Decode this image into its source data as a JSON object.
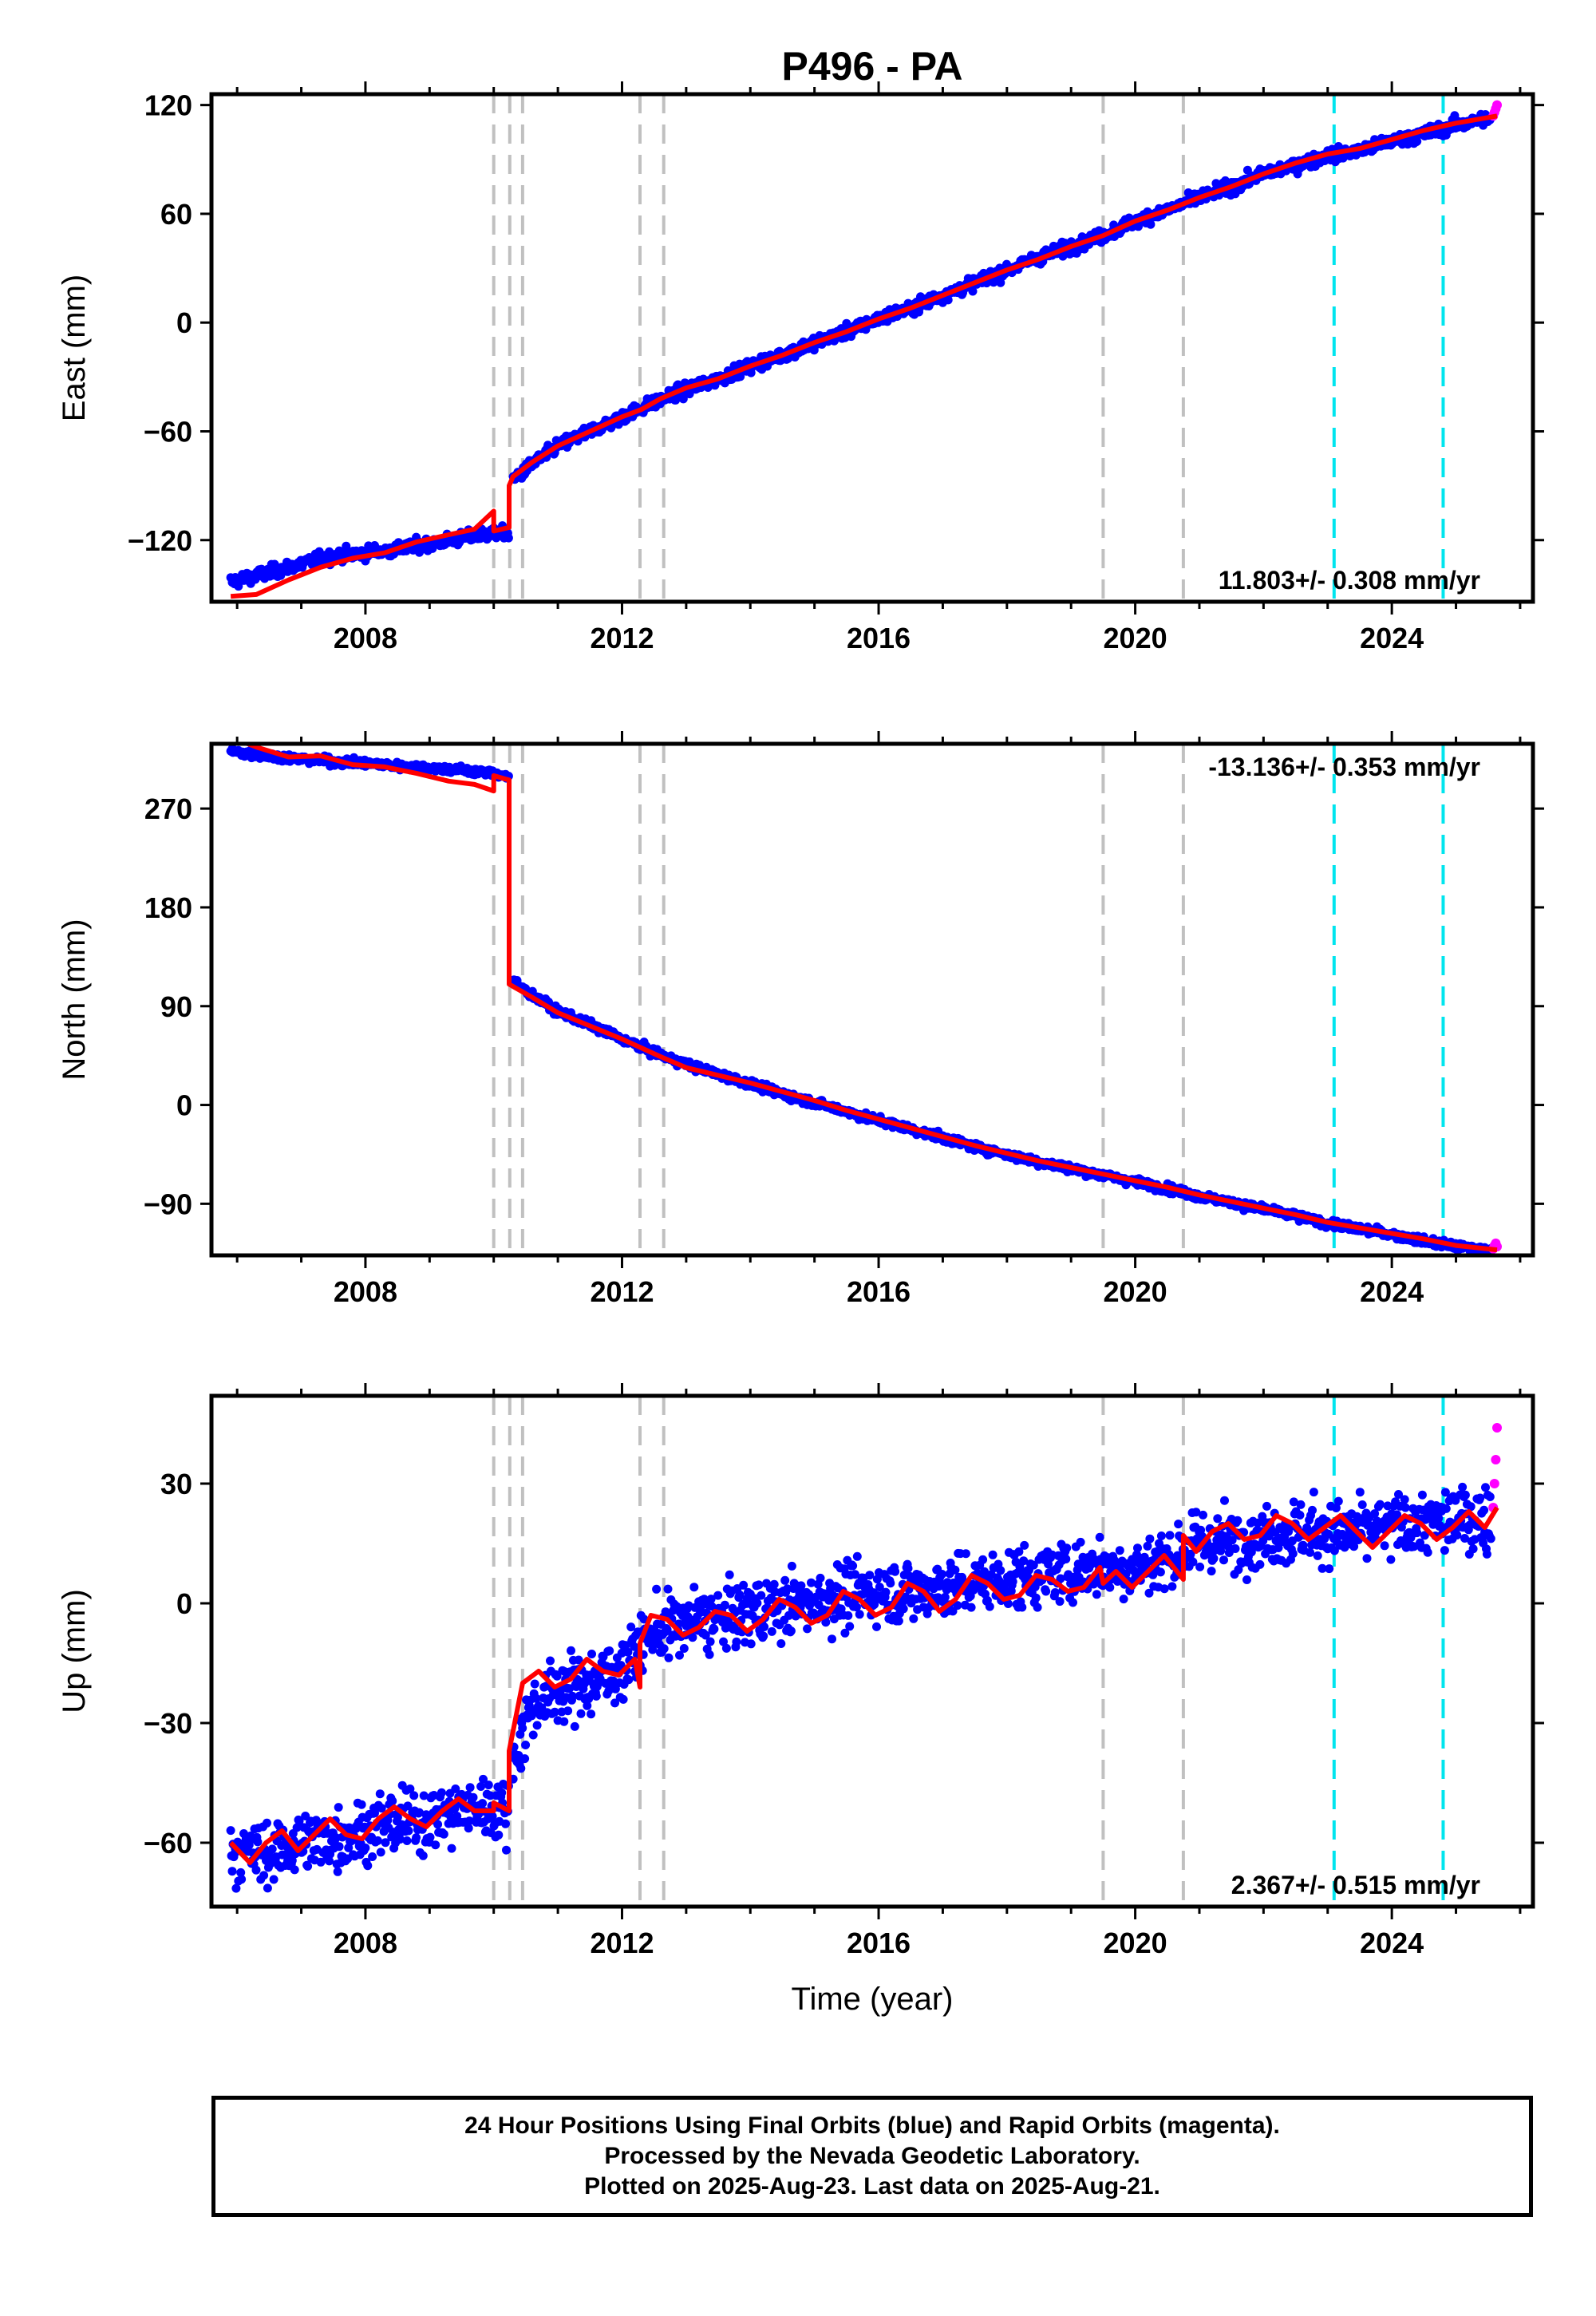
{
  "colors": {
    "final_orbits": "#0000ff",
    "rapid_orbits": "#ff00ff",
    "model": "#ff0000",
    "equipment_change": "#c0c0c0",
    "earthquake": "#00e5ee",
    "frame": "#000000"
  },
  "chart_data": {
    "type": "scatter",
    "title": "P496 - PA",
    "xlabel": "Time (year)",
    "x_ticks": [
      "2008",
      "2012",
      "2016",
      "2020",
      "2024"
    ],
    "xlim": [
      2005.6,
      2026.2
    ],
    "event_lines_gray": [
      2010.0,
      2010.25,
      2010.45,
      2012.28,
      2012.65,
      2019.5,
      2020.75
    ],
    "event_lines_cyan": [
      2023.1,
      2024.8
    ],
    "last_data": 2025.64,
    "panels": [
      {
        "component": "East",
        "ylabel": "East (mm)",
        "ylim": [
          -154,
          126
        ],
        "y_ticks": [
          -120,
          -60,
          0,
          60,
          120
        ],
        "rate_text": "11.803+/- 0.308 mm/yr",
        "rate_position": "bottom-right",
        "series": [
          {
            "name": "final_orbits",
            "x": [
              2005.9,
              2006.5,
              2007.0,
              2007.5,
              2008.0,
              2008.5,
              2009.0,
              2009.5,
              2010.0,
              2010.24,
              2010.3,
              2010.6,
              2011.0,
              2011.5,
              2012.0,
              2012.5,
              2013.0,
              2013.5,
              2014.0,
              2014.5,
              2015.0,
              2015.5,
              2016.0,
              2016.5,
              2017.0,
              2017.5,
              2018.0,
              2018.5,
              2019.0,
              2019.5,
              2020.0,
              2020.5,
              2021.0,
              2021.5,
              2022.0,
              2022.5,
              2023.0,
              2023.5,
              2024.0,
              2024.5,
              2025.0,
              2025.55
            ],
            "y": [
              -143,
              -138,
              -133,
              -129,
              -127,
              -125,
              -122,
              -119,
              -116,
              -117,
              -87,
              -78,
              -68,
              -60,
              -52,
              -44,
              -37,
              -31,
              -24,
              -18,
              -11,
              -5,
              2,
              8,
              15,
              22,
              29,
              36,
              42,
              48,
              56,
              62,
              69,
              75,
              82,
              87,
              92,
              95,
              100,
              104,
              109,
              113
            ]
          },
          {
            "name": "rapid_orbits",
            "x": [
              2025.58,
              2025.6,
              2025.62,
              2025.64
            ],
            "y": [
              114,
              116,
              118,
              120
            ]
          },
          {
            "name": "model",
            "x": [
              2005.9,
              2006.3,
              2006.8,
              2007.3,
              2007.8,
              2008.3,
              2008.8,
              2009.3,
              2009.7,
              2010.0,
              2010.0,
              2010.24,
              2010.24,
              2010.3,
              2010.6,
              2011.0,
              2011.5,
              2012.0,
              2012.3,
              2012.6,
              2013.0,
              2013.5,
              2014.0,
              2014.5,
              2015.0,
              2015.5,
              2016.0,
              2016.5,
              2017.0,
              2017.5,
              2018.0,
              2018.5,
              2019.0,
              2019.5,
              2020.0,
              2020.5,
              2021.0,
              2021.5,
              2022.0,
              2022.5,
              2023.0,
              2023.5,
              2024.0,
              2024.5,
              2025.0,
              2025.64
            ],
            "y": [
              -151,
              -150,
              -142,
              -135,
              -130,
              -127,
              -121,
              -117,
              -114,
              -104,
              -115,
              -113,
              -90,
              -85,
              -77,
              -68,
              -60,
              -52,
              -48,
              -42,
              -36,
              -31,
              -24,
              -18,
              -11,
              -5,
              2,
              8,
              15,
              22,
              29,
              35,
              42,
              48,
              56,
              62,
              69,
              75,
              82,
              88,
              93,
              96,
              101,
              106,
              110,
              114
            ]
          }
        ]
      },
      {
        "component": "North",
        "ylabel": "North (mm)",
        "ylim": [
          -137,
          329
        ],
        "y_ticks": [
          -90,
          0,
          90,
          180,
          270
        ],
        "rate_text": "-13.136+/- 0.353 mm/yr",
        "rate_position": "top-right",
        "series": [
          {
            "name": "final_orbits",
            "x": [
              2005.9,
              2006.5,
              2007.0,
              2007.5,
              2008.0,
              2008.5,
              2009.0,
              2009.5,
              2010.0,
              2010.24,
              2010.3,
              2010.6,
              2011.0,
              2011.5,
              2012.0,
              2012.5,
              2013.0,
              2013.5,
              2014.0,
              2014.5,
              2015.0,
              2015.5,
              2016.0,
              2016.5,
              2017.0,
              2017.5,
              2018.0,
              2018.5,
              2019.0,
              2019.5,
              2020.0,
              2020.5,
              2021.0,
              2021.5,
              2022.0,
              2022.5,
              2023.0,
              2023.5,
              2024.0,
              2024.5,
              2025.0,
              2025.55
            ],
            "y": [
              322,
              318,
              315,
              313,
              311,
              309,
              307,
              305,
              302,
              299,
              112,
              100,
              85,
              73,
              60,
              48,
              37,
              28,
              19,
              10,
              2,
              -6,
              -14,
              -22,
              -30,
              -38,
              -45,
              -52,
              -58,
              -64,
              -70,
              -76,
              -83,
              -89,
              -95,
              -101,
              -108,
              -113,
              -118,
              -124,
              -129,
              -133
            ]
          },
          {
            "name": "rapid_orbits",
            "x": [
              2025.58,
              2025.6,
              2025.62,
              2025.64
            ],
            "y": [
              -131,
              -128,
              -126,
              -129
            ]
          },
          {
            "name": "model",
            "x": [
              2005.9,
              2006.3,
              2006.8,
              2007.3,
              2007.8,
              2008.3,
              2008.8,
              2009.3,
              2009.7,
              2010.0,
              2010.0,
              2010.24,
              2010.24,
              2010.3,
              2010.6,
              2011.0,
              2011.5,
              2012.0,
              2012.3,
              2012.6,
              2013.0,
              2013.5,
              2014.0,
              2014.5,
              2015.0,
              2015.5,
              2016.0,
              2016.5,
              2017.0,
              2017.5,
              2018.0,
              2018.5,
              2019.0,
              2019.5,
              2020.0,
              2020.5,
              2021.0,
              2021.5,
              2022.0,
              2022.5,
              2023.0,
              2023.5,
              2024.0,
              2024.5,
              2025.0,
              2025.64
            ],
            "y": [
              335,
              326,
              317,
              318,
              310,
              308,
              302,
              295,
              292,
              286,
              300,
              296,
              110,
              108,
              98,
              84,
              72,
              60,
              52,
              44,
              34,
              27,
              20,
              12,
              4,
              -5,
              -13,
              -21,
              -29,
              -37,
              -44,
              -51,
              -57,
              -63,
              -69,
              -75,
              -82,
              -88,
              -94,
              -100,
              -107,
              -112,
              -117,
              -122,
              -128,
              -132
            ]
          }
        ]
      },
      {
        "component": "Up",
        "ylabel": "Up (mm)",
        "ylim": [
          -76,
          52
        ],
        "y_ticks": [
          -60,
          -30,
          0,
          30
        ],
        "rate_text": "2.367+/- 0.515 mm/yr",
        "rate_position": "bottom-right",
        "series": [
          {
            "name": "final_orbits",
            "x": [
              2005.9,
              2006.5,
              2007.0,
              2007.5,
              2008.0,
              2008.5,
              2009.0,
              2009.5,
              2010.0,
              2010.24,
              2010.3,
              2010.6,
              2011.0,
              2011.5,
              2012.0,
              2012.5,
              2013.0,
              2013.5,
              2014.0,
              2014.5,
              2015.0,
              2015.5,
              2016.0,
              2016.5,
              2017.0,
              2017.5,
              2018.0,
              2018.5,
              2019.0,
              2019.5,
              2020.0,
              2020.5,
              2021.0,
              2021.5,
              2022.0,
              2022.5,
              2023.0,
              2023.5,
              2024.0,
              2024.5,
              2025.0,
              2025.55
            ],
            "y": [
              -62,
              -63,
              -60,
              -59,
              -57,
              -55,
              -54,
              -52,
              -51,
              -52,
              -38,
              -26,
              -22,
              -20,
              -16,
              -7,
              -5,
              -4,
              -2,
              -1,
              1,
              2,
              3,
              3,
              4,
              5,
              6,
              7,
              8,
              9,
              9,
              11,
              15,
              16,
              17,
              18,
              18,
              18,
              19,
              20,
              21,
              21
            ]
          },
          {
            "name": "rapid_orbits",
            "x": [
              2025.58,
              2025.6,
              2025.62,
              2025.64
            ],
            "y": [
              24,
              30,
              36,
              44
            ]
          },
          {
            "name": "model",
            "x": [
              2005.9,
              2006.2,
              2006.45,
              2006.7,
              2006.95,
              2007.2,
              2007.45,
              2007.7,
              2007.95,
              2008.2,
              2008.45,
              2008.7,
              2008.95,
              2009.2,
              2009.45,
              2009.7,
              2010.0,
              2010.0,
              2010.24,
              2010.24,
              2010.45,
              2010.7,
              2010.95,
              2011.2,
              2011.45,
              2011.7,
              2011.95,
              2012.2,
              2012.28,
              2012.28,
              2012.45,
              2012.7,
              2012.95,
              2013.2,
              2013.45,
              2013.7,
              2013.95,
              2014.2,
              2014.45,
              2014.7,
              2014.95,
              2015.2,
              2015.45,
              2015.7,
              2015.95,
              2016.2,
              2016.45,
              2016.7,
              2016.95,
              2017.2,
              2017.45,
              2017.7,
              2017.95,
              2018.2,
              2018.45,
              2018.7,
              2018.95,
              2019.2,
              2019.45,
              2019.5,
              2019.7,
              2019.95,
              2020.2,
              2020.45,
              2020.75,
              2020.75,
              2020.95,
              2021.2,
              2021.45,
              2021.7,
              2021.95,
              2022.2,
              2022.45,
              2022.7,
              2022.95,
              2023.2,
              2023.45,
              2023.7,
              2023.95,
              2024.2,
              2024.45,
              2024.7,
              2024.95,
              2025.2,
              2025.45,
              2025.64
            ],
            "y": [
              -60,
              -65,
              -60,
              -57,
              -62,
              -58,
              -54,
              -58,
              -59,
              -54,
              -51,
              -54,
              -56,
              -52,
              -49,
              -52,
              -52,
              -50,
              -52,
              -37,
              -20,
              -17,
              -21,
              -19,
              -14,
              -17,
              -18,
              -14,
              -21,
              -10,
              -3,
              -4,
              -8,
              -6,
              -2,
              -3,
              -7,
              -4,
              1,
              -1,
              -5,
              -3,
              3,
              1,
              -3,
              -1,
              5,
              3,
              -2,
              1,
              7,
              5,
              1,
              2,
              7,
              6,
              3,
              4,
              9,
              5,
              8,
              4,
              8,
              12,
              6,
              17,
              13,
              18,
              20,
              16,
              17,
              22,
              20,
              16,
              19,
              22,
              18,
              14,
              18,
              22,
              20,
              16,
              19,
              23,
              19,
              24
            ]
          }
        ]
      }
    ]
  },
  "footer": {
    "line1": "24 Hour Positions Using Final Orbits (blue) and Rapid Orbits (magenta).",
    "line2": "Processed by the Nevada Geodetic Laboratory.",
    "line3": "Plotted on 2025-Aug-23. Last data on 2025-Aug-21."
  }
}
